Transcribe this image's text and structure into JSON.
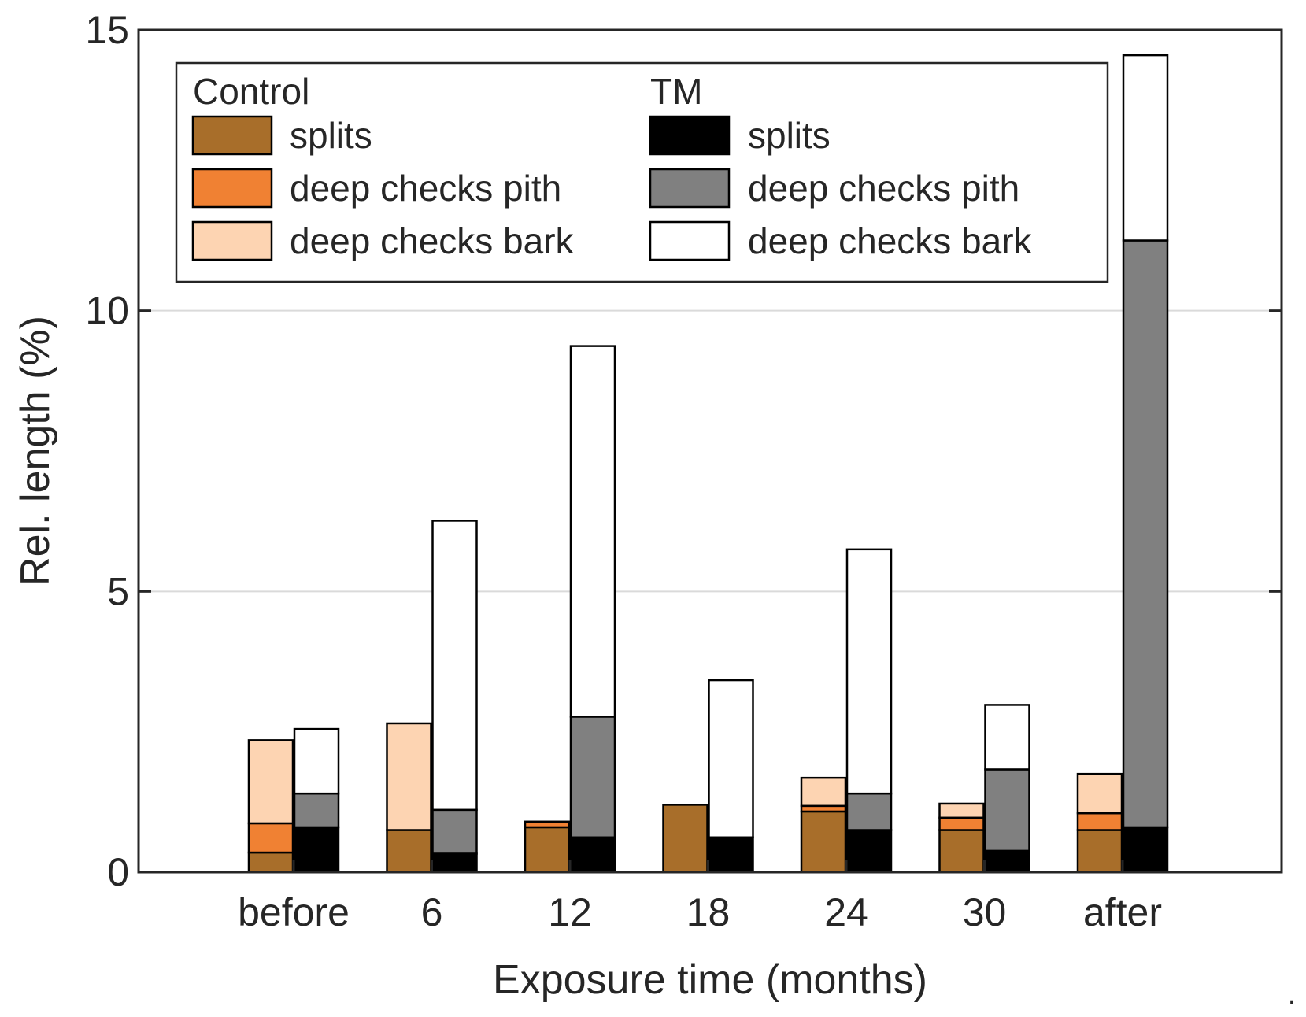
{
  "chart_data": {
    "type": "bar",
    "stacked": true,
    "grouped": true,
    "title": "",
    "xlabel": "Exposure time (months)",
    "ylabel": "Rel. length (%)",
    "ylim": [
      0,
      15
    ],
    "yticks": [
      0,
      5,
      10,
      15
    ],
    "grid": "horizontal",
    "legend_position": "top-left",
    "categories": [
      "before",
      "6",
      "12",
      "18",
      "24",
      "30",
      "after"
    ],
    "groups": [
      {
        "name": "Control",
        "series": [
          {
            "name": "splits",
            "color": "#a86e2a",
            "values": [
              0.35,
              0.75,
              0.8,
              1.2,
              1.08,
              0.75,
              0.75
            ]
          },
          {
            "name": "deep checks pith",
            "color": "#f08133",
            "values": [
              0.52,
              0.0,
              0.1,
              0.0,
              0.1,
              0.22,
              0.3
            ]
          },
          {
            "name": "deep checks bark",
            "color": "#fdd4b2",
            "values": [
              1.48,
              1.9,
              0.0,
              0.0,
              0.5,
              0.25,
              0.7
            ]
          }
        ]
      },
      {
        "name": "TM",
        "series": [
          {
            "name": "splits",
            "color": "#000000",
            "values": [
              0.8,
              0.33,
              0.62,
              0.62,
              0.75,
              0.38,
              0.8
            ]
          },
          {
            "name": "deep checks pith",
            "color": "#808080",
            "values": [
              0.6,
              0.78,
              2.15,
              0.0,
              0.65,
              1.45,
              10.45
            ]
          },
          {
            "name": "deep checks bark",
            "color": "#ffffff",
            "values": [
              1.15,
              5.15,
              6.6,
              2.8,
              4.35,
              1.15,
              3.3
            ]
          }
        ]
      }
    ]
  },
  "legend": {
    "control_header": "Control",
    "tm_header": "TM"
  },
  "footer": {
    "dot": "."
  }
}
